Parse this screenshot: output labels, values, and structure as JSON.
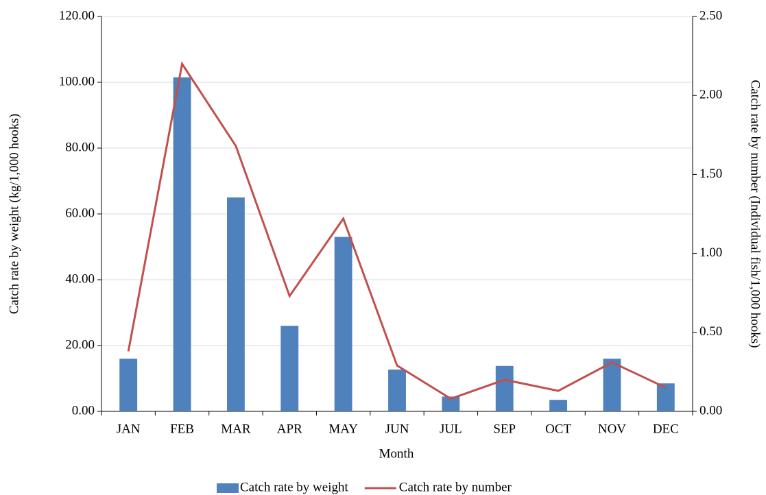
{
  "chart_data": {
    "type": "bar",
    "x_label": "Month",
    "y_label": "Catch rate by weight (kg/1,000 hooks)",
    "y2_label": "Catch rate by number (Individual fish/1,000 hooks)",
    "categories": [
      "JAN",
      "FEB",
      "MAR",
      "APR",
      "MAY",
      "JUN",
      "JUL",
      "SEP",
      "OCT",
      "NOV",
      "DEC"
    ],
    "series": [
      {
        "name": "Catch rate by weight",
        "type": "bar",
        "color": "#4f81bd",
        "values": [
          16,
          101.5,
          65,
          26,
          53,
          12.7,
          4.5,
          13.8,
          3.5,
          16,
          8.5
        ]
      },
      {
        "name": "Catch rate by number",
        "type": "line",
        "axis": "y2",
        "color": "#c0504d",
        "values": [
          0.38,
          2.2,
          1.68,
          0.73,
          1.22,
          0.29,
          0.08,
          0.2,
          0.13,
          0.31,
          0.15
        ]
      }
    ],
    "ylim": [
      0,
      120
    ],
    "yticks": [
      {
        "value": 0,
        "label": "0.00"
      },
      {
        "value": 20,
        "label": "20.00"
      },
      {
        "value": 40,
        "label": "40.00"
      },
      {
        "value": 60,
        "label": "60.00"
      },
      {
        "value": 80,
        "label": "80.00"
      },
      {
        "value": 100,
        "label": "100.00"
      },
      {
        "value": 120,
        "label": "120.00"
      }
    ],
    "y2lim": [
      0,
      2.5
    ],
    "y2ticks": [
      {
        "value": 0,
        "label": "0.00"
      },
      {
        "value": 0.5,
        "label": "0.50"
      },
      {
        "value": 1,
        "label": "1.00"
      },
      {
        "value": 1.5,
        "label": "1.50"
      },
      {
        "value": 2,
        "label": "2.00"
      },
      {
        "value": 2.5,
        "label": "2.50"
      }
    ],
    "grid": true,
    "legend": "bottom"
  }
}
